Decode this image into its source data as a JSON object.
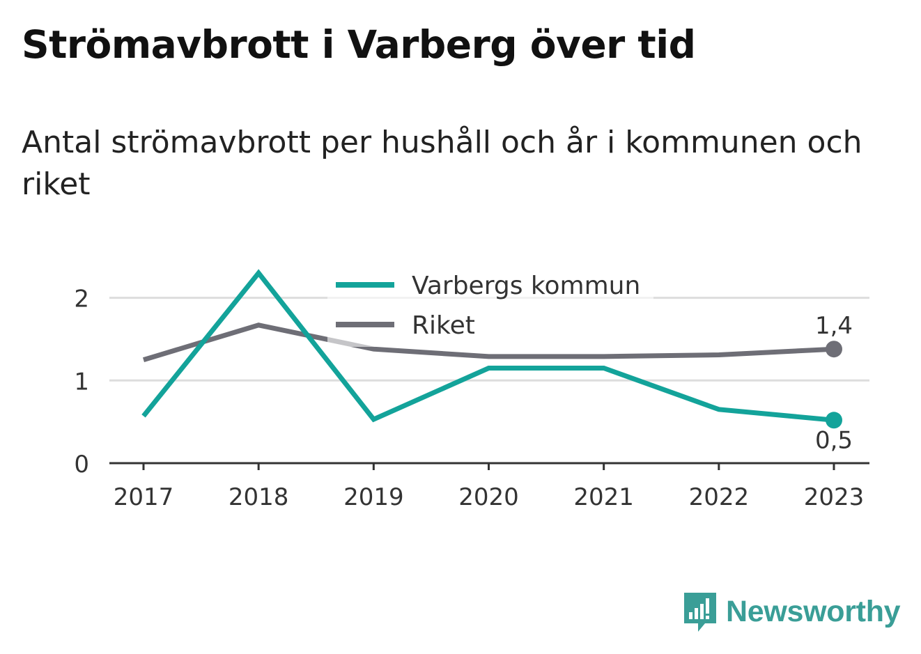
{
  "title": "Strömavbrott i Varberg över tid",
  "subtitle": "Antal strömavbrott per hushåll och år i kommunen och riket",
  "brand": {
    "name": "Newsworthy",
    "color": "#3a9e97"
  },
  "chart_data": {
    "type": "line",
    "x": [
      "2017",
      "2018",
      "2019",
      "2020",
      "2021",
      "2022",
      "2023"
    ],
    "series": [
      {
        "name": "Varbergs kommun",
        "color": "#13a39a",
        "values": [
          0.57,
          2.3,
          0.53,
          1.15,
          1.15,
          0.65,
          0.52
        ],
        "end_label": "0,5"
      },
      {
        "name": "Riket",
        "color": "#6e6e76",
        "values": [
          1.25,
          1.67,
          1.38,
          1.29,
          1.29,
          1.31,
          1.38
        ],
        "end_label": "1,4"
      }
    ],
    "ylim": [
      0,
      2.3
    ],
    "yticks": [
      0,
      1,
      2
    ],
    "ytick_labels": [
      "0",
      "1",
      "2"
    ],
    "grid": true,
    "legend_position": "top-center",
    "xlabel": "",
    "ylabel": ""
  }
}
